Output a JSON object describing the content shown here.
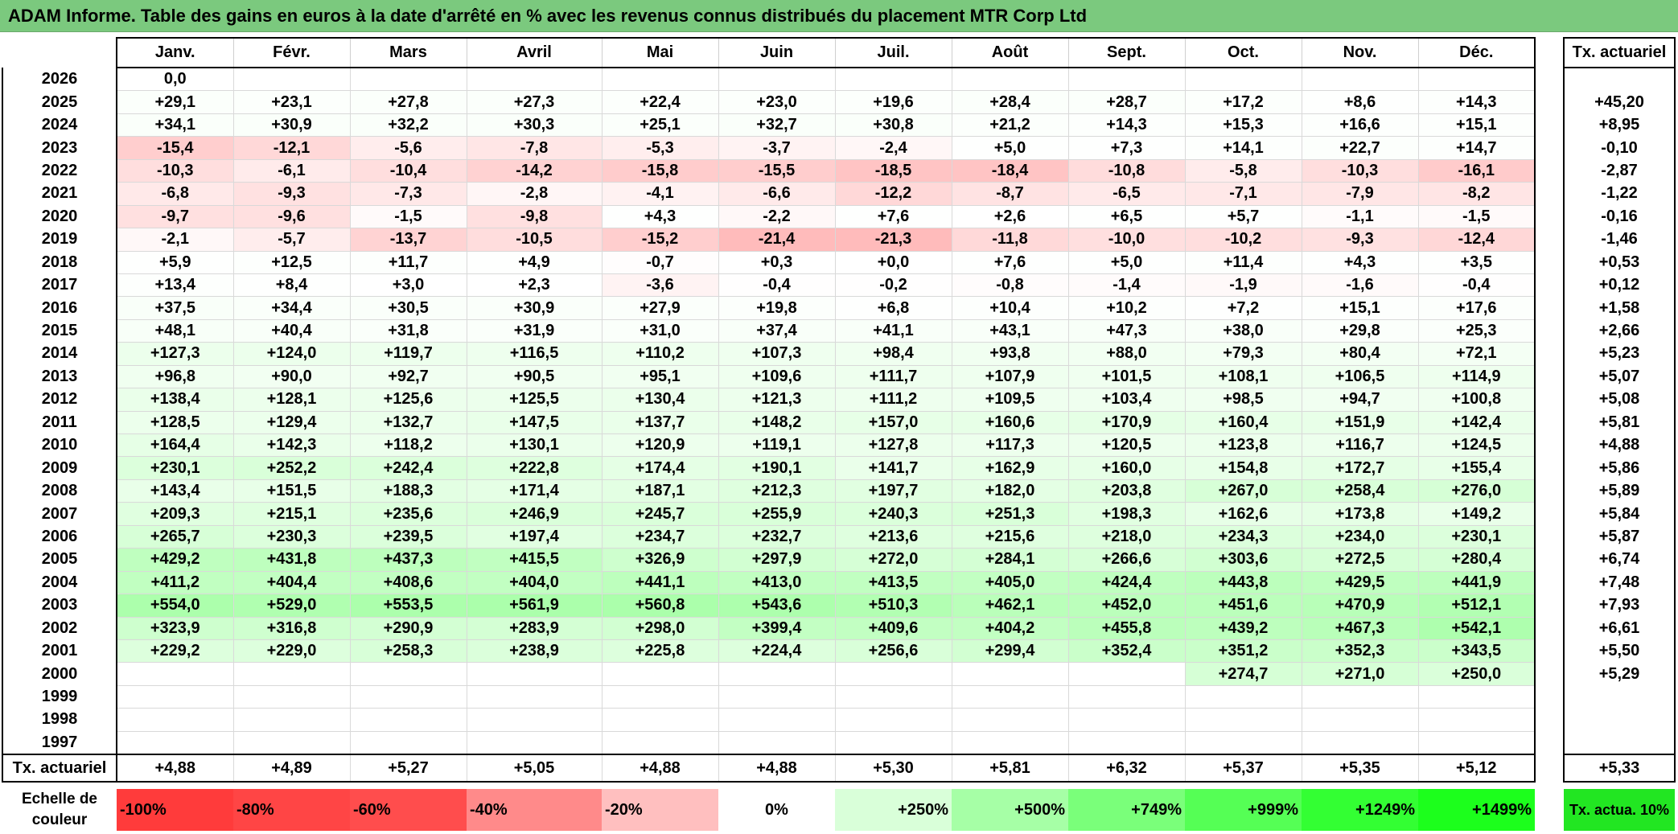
{
  "title": "ADAM Informe. Table des gains en euros à la date d'arrêté en % avec les revenus connus distribués du placement MTR Corp Ltd",
  "months": [
    "Janv.",
    "Févr.",
    "Mars",
    "Avril",
    "Mai",
    "Juin",
    "Juil.",
    "Août",
    "Sept.",
    "Oct.",
    "Nov.",
    "Déc."
  ],
  "rate_header": "Tx. actuariel",
  "rows": [
    {
      "year": "2026",
      "values": [
        "0,0",
        "",
        "",
        "",
        "",
        "",
        "",
        "",
        "",
        "",
        "",
        ""
      ],
      "rate": ""
    },
    {
      "year": "2025",
      "values": [
        "+29,1",
        "+23,1",
        "+27,8",
        "+27,3",
        "+22,4",
        "+23,0",
        "+19,6",
        "+28,4",
        "+28,7",
        "+17,2",
        "+8,6",
        "+14,3"
      ],
      "rate": "+45,20"
    },
    {
      "year": "2024",
      "values": [
        "+34,1",
        "+30,9",
        "+32,2",
        "+30,3",
        "+25,1",
        "+32,7",
        "+30,8",
        "+21,2",
        "+14,3",
        "+15,3",
        "+16,6",
        "+15,1"
      ],
      "rate": "+8,95"
    },
    {
      "year": "2023",
      "values": [
        "-15,4",
        "-12,1",
        "-5,6",
        "-7,8",
        "-5,3",
        "-3,7",
        "-2,4",
        "+5,0",
        "+7,3",
        "+14,1",
        "+22,7",
        "+14,7"
      ],
      "rate": "-0,10"
    },
    {
      "year": "2022",
      "values": [
        "-10,3",
        "-6,1",
        "-10,4",
        "-14,2",
        "-15,8",
        "-15,5",
        "-18,5",
        "-18,4",
        "-10,8",
        "-5,8",
        "-10,3",
        "-16,1"
      ],
      "rate": "-2,87"
    },
    {
      "year": "2021",
      "values": [
        "-6,8",
        "-9,3",
        "-7,3",
        "-2,8",
        "-4,1",
        "-6,6",
        "-12,2",
        "-8,7",
        "-6,5",
        "-7,1",
        "-7,9",
        "-8,2"
      ],
      "rate": "-1,22"
    },
    {
      "year": "2020",
      "values": [
        "-9,7",
        "-9,6",
        "-1,5",
        "-9,8",
        "+4,3",
        "-2,2",
        "+7,6",
        "+2,6",
        "+6,5",
        "+5,7",
        "-1,1",
        "-1,5"
      ],
      "rate": "-0,16"
    },
    {
      "year": "2019",
      "values": [
        "-2,1",
        "-5,7",
        "-13,7",
        "-10,5",
        "-15,2",
        "-21,4",
        "-21,3",
        "-11,8",
        "-10,0",
        "-10,2",
        "-9,3",
        "-12,4"
      ],
      "rate": "-1,46"
    },
    {
      "year": "2018",
      "values": [
        "+5,9",
        "+12,5",
        "+11,7",
        "+4,9",
        "-0,7",
        "+0,3",
        "+0,0",
        "+7,6",
        "+5,0",
        "+11,4",
        "+4,3",
        "+3,5"
      ],
      "rate": "+0,53"
    },
    {
      "year": "2017",
      "values": [
        "+13,4",
        "+8,4",
        "+3,0",
        "+2,3",
        "-3,6",
        "-0,4",
        "-0,2",
        "-0,8",
        "-1,4",
        "-1,9",
        "-1,6",
        "-0,4"
      ],
      "rate": "+0,12"
    },
    {
      "year": "2016",
      "values": [
        "+37,5",
        "+34,4",
        "+30,5",
        "+30,9",
        "+27,9",
        "+19,8",
        "+6,8",
        "+10,4",
        "+10,2",
        "+7,2",
        "+15,1",
        "+17,6"
      ],
      "rate": "+1,58"
    },
    {
      "year": "2015",
      "values": [
        "+48,1",
        "+40,4",
        "+31,8",
        "+31,9",
        "+31,0",
        "+37,4",
        "+41,1",
        "+43,1",
        "+47,3",
        "+38,0",
        "+29,8",
        "+25,3"
      ],
      "rate": "+2,66"
    },
    {
      "year": "2014",
      "values": [
        "+127,3",
        "+124,0",
        "+119,7",
        "+116,5",
        "+110,2",
        "+107,3",
        "+98,4",
        "+93,8",
        "+88,0",
        "+79,3",
        "+80,4",
        "+72,1"
      ],
      "rate": "+5,23"
    },
    {
      "year": "2013",
      "values": [
        "+96,8",
        "+90,0",
        "+92,7",
        "+90,5",
        "+95,1",
        "+109,6",
        "+111,7",
        "+107,9",
        "+101,5",
        "+108,1",
        "+106,5",
        "+114,9"
      ],
      "rate": "+5,07"
    },
    {
      "year": "2012",
      "values": [
        "+138,4",
        "+128,1",
        "+125,6",
        "+125,5",
        "+130,4",
        "+121,3",
        "+111,2",
        "+109,5",
        "+103,4",
        "+98,5",
        "+94,7",
        "+100,8"
      ],
      "rate": "+5,08"
    },
    {
      "year": "2011",
      "values": [
        "+128,5",
        "+129,4",
        "+132,7",
        "+147,5",
        "+137,7",
        "+148,2",
        "+157,0",
        "+160,6",
        "+170,9",
        "+160,4",
        "+151,9",
        "+142,4"
      ],
      "rate": "+5,81"
    },
    {
      "year": "2010",
      "values": [
        "+164,4",
        "+142,3",
        "+118,2",
        "+130,1",
        "+120,9",
        "+119,1",
        "+127,8",
        "+117,3",
        "+120,5",
        "+123,8",
        "+116,7",
        "+124,5"
      ],
      "rate": "+4,88"
    },
    {
      "year": "2009",
      "values": [
        "+230,1",
        "+252,2",
        "+242,4",
        "+222,8",
        "+174,4",
        "+190,1",
        "+141,7",
        "+162,9",
        "+160,0",
        "+154,8",
        "+172,7",
        "+155,4"
      ],
      "rate": "+5,86"
    },
    {
      "year": "2008",
      "values": [
        "+143,4",
        "+151,5",
        "+188,3",
        "+171,4",
        "+187,1",
        "+212,3",
        "+197,7",
        "+182,0",
        "+203,8",
        "+267,0",
        "+258,4",
        "+276,0"
      ],
      "rate": "+5,89"
    },
    {
      "year": "2007",
      "values": [
        "+209,3",
        "+215,1",
        "+235,6",
        "+246,9",
        "+245,7",
        "+255,9",
        "+240,3",
        "+251,3",
        "+198,3",
        "+162,6",
        "+173,8",
        "+149,2"
      ],
      "rate": "+5,84"
    },
    {
      "year": "2006",
      "values": [
        "+265,7",
        "+230,3",
        "+239,5",
        "+197,4",
        "+234,7",
        "+232,7",
        "+213,6",
        "+215,6",
        "+218,0",
        "+234,3",
        "+234,0",
        "+230,1"
      ],
      "rate": "+5,87"
    },
    {
      "year": "2005",
      "values": [
        "+429,2",
        "+431,8",
        "+437,3",
        "+415,5",
        "+326,9",
        "+297,9",
        "+272,0",
        "+284,1",
        "+266,6",
        "+303,6",
        "+272,5",
        "+280,4"
      ],
      "rate": "+6,74"
    },
    {
      "year": "2004",
      "values": [
        "+411,2",
        "+404,4",
        "+408,6",
        "+404,0",
        "+441,1",
        "+413,0",
        "+413,5",
        "+405,0",
        "+424,4",
        "+443,8",
        "+429,5",
        "+441,9"
      ],
      "rate": "+7,48"
    },
    {
      "year": "2003",
      "values": [
        "+554,0",
        "+529,0",
        "+553,5",
        "+561,9",
        "+560,8",
        "+543,6",
        "+510,3",
        "+462,1",
        "+452,0",
        "+451,6",
        "+470,9",
        "+512,1"
      ],
      "rate": "+7,93"
    },
    {
      "year": "2002",
      "values": [
        "+323,9",
        "+316,8",
        "+290,9",
        "+283,9",
        "+298,0",
        "+399,4",
        "+409,6",
        "+404,2",
        "+455,8",
        "+439,2",
        "+467,3",
        "+542,1"
      ],
      "rate": "+6,61"
    },
    {
      "year": "2001",
      "values": [
        "+229,2",
        "+229,0",
        "+258,3",
        "+238,9",
        "+225,8",
        "+224,4",
        "+256,6",
        "+299,4",
        "+352,4",
        "+351,2",
        "+352,3",
        "+343,5"
      ],
      "rate": "+5,50"
    },
    {
      "year": "2000",
      "values": [
        "",
        "",
        "",
        "",
        "",
        "",
        "",
        "",
        "",
        "+274,7",
        "+271,0",
        "+250,0"
      ],
      "rate": "+5,29"
    },
    {
      "year": "1999",
      "values": [
        "",
        "",
        "",
        "",
        "",
        "",
        "",
        "",
        "",
        "",
        "",
        ""
      ],
      "rate": ""
    },
    {
      "year": "1998",
      "values": [
        "",
        "",
        "",
        "",
        "",
        "",
        "",
        "",
        "",
        "",
        "",
        ""
      ],
      "rate": ""
    },
    {
      "year": "1997",
      "values": [
        "",
        "",
        "",
        "",
        "",
        "",
        "",
        "",
        "",
        "",
        "",
        ""
      ],
      "rate": ""
    }
  ],
  "annual_rates": {
    "label": "Tx. actuariel",
    "values": [
      "+4,88",
      "+4,89",
      "+5,27",
      "+5,05",
      "+4,88",
      "+4,88",
      "+5,30",
      "+5,81",
      "+6,32",
      "+5,37",
      "+5,35",
      "+5,12"
    ],
    "total": "+5,33"
  },
  "color_scale": {
    "label": "Echelle de couleur",
    "steps": [
      {
        "text": "-100%",
        "color": "#ff3b3b"
      },
      {
        "text": "-80%",
        "color": "#ff4545"
      },
      {
        "text": "-60%",
        "color": "#ff4d4d"
      },
      {
        "text": "-40%",
        "color": "#ff8a8a"
      },
      {
        "text": "-20%",
        "color": "#ffbfbf"
      },
      {
        "text": "0%",
        "color": "#ffffff"
      },
      {
        "text": "+250%",
        "color": "#d9ffd9"
      },
      {
        "text": "+500%",
        "color": "#a6ffa6"
      },
      {
        "text": "+749%",
        "color": "#7aff7a"
      },
      {
        "text": "+999%",
        "color": "#55ff55"
      },
      {
        "text": "+1249%",
        "color": "#33ff33"
      },
      {
        "text": "+1499%",
        "color": "#1cff1c"
      }
    ],
    "rate_label": "Tx. actua. 10%",
    "rate_color": "#22e622"
  }
}
